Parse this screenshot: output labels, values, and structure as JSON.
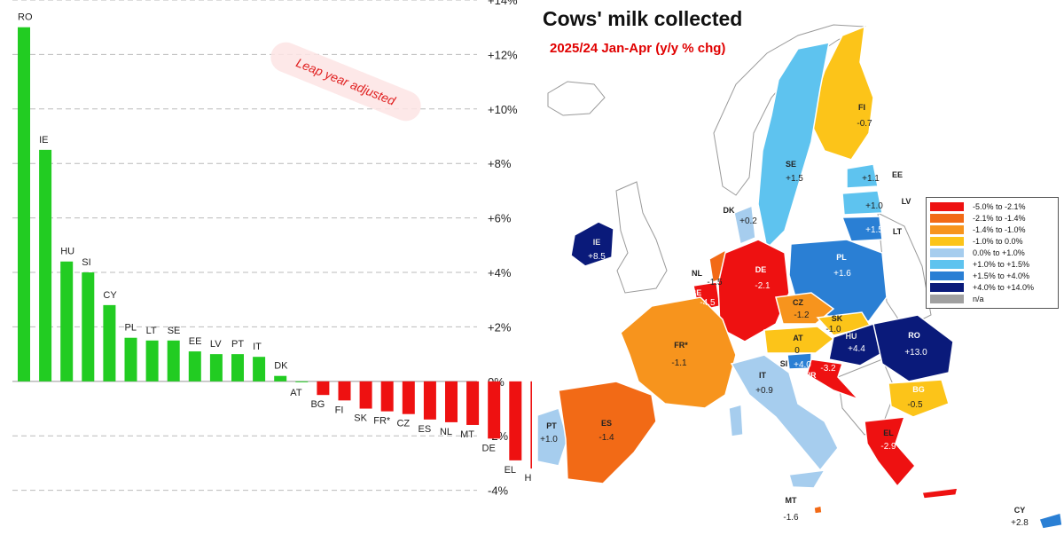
{
  "chart_data": [
    {
      "type": "bar",
      "title": "",
      "annotation": "Leap year adjusted",
      "categories": [
        "RO",
        "IE",
        "HU",
        "SI",
        "CY",
        "PL",
        "LT",
        "SE",
        "EE",
        "LV",
        "PT",
        "IT",
        "DK",
        "AT",
        "BG",
        "FI",
        "SK",
        "FR*",
        "CZ",
        "ES",
        "NL",
        "MT",
        "DE",
        "EL",
        "HR",
        "BE"
      ],
      "values": [
        13.0,
        8.5,
        4.4,
        4.0,
        2.8,
        1.6,
        1.5,
        1.5,
        1.1,
        1.0,
        1.0,
        0.9,
        0.2,
        0.0,
        -0.5,
        -0.7,
        -1.0,
        -1.1,
        -1.2,
        -1.4,
        -1.5,
        -1.6,
        -2.1,
        -2.9,
        -3.2,
        -4.5
      ],
      "positive_color": "#22cc22",
      "negative_color": "#ee1111",
      "ylim": [
        -4.5,
        14
      ],
      "y_ticks": [
        "+14%",
        "+12%",
        "+10%",
        "+8%",
        "+6%",
        "+4%",
        "+2%",
        "0%",
        "-2%",
        "-4%"
      ],
      "grid": true,
      "y_axis_side": "right"
    },
    {
      "type": "map",
      "title": "Cows' milk collected",
      "subtitle": "2025/24  Jan-Apr  (y/y % chg)",
      "legend": [
        {
          "label": "-5.0%  to  -2.1%",
          "color": "#ee1111"
        },
        {
          "label": "-2.1%  to  -1.4%",
          "color": "#f26a16"
        },
        {
          "label": "-1.4%  to  -1.0%",
          "color": "#f7941d"
        },
        {
          "label": "-1.0%  to  0.0%",
          "color": "#fcc419"
        },
        {
          "label": "0.0%  to  +1.0%",
          "color": "#a6cdee"
        },
        {
          "label": "+1.0%  to  +1.5%",
          "color": "#5ec3ef"
        },
        {
          "label": "+1.5%  to  +4.0%",
          "color": "#2a7fd4"
        },
        {
          "label": "+4.0%  to  +14.0%",
          "color": "#0a1a7a"
        },
        {
          "label": "n/a",
          "color": "#a0a0a0"
        }
      ],
      "regions": [
        {
          "code": "FI",
          "value": "-0.7"
        },
        {
          "code": "SE",
          "value": "+1.5"
        },
        {
          "code": "EE",
          "value": "+1.1"
        },
        {
          "code": "LV",
          "value": "+1.0"
        },
        {
          "code": "LT",
          "value": "+1.5"
        },
        {
          "code": "DK",
          "value": "+0.2"
        },
        {
          "code": "IE",
          "value": "+8.5"
        },
        {
          "code": "NL",
          "value": "-1.5"
        },
        {
          "code": "BE",
          "value": "-4.5"
        },
        {
          "code": "DE",
          "value": "-2.1"
        },
        {
          "code": "PL",
          "value": "+1.6"
        },
        {
          "code": "CZ",
          "value": "-1.2"
        },
        {
          "code": "SK",
          "value": "-1.0"
        },
        {
          "code": "AT",
          "value": "0"
        },
        {
          "code": "HU",
          "value": "+4.4"
        },
        {
          "code": "RO",
          "value": "+13.0"
        },
        {
          "code": "FR*",
          "value": "-1.1"
        },
        {
          "code": "SI",
          "value": "+4.0"
        },
        {
          "code": "HR",
          "value": "-3.2"
        },
        {
          "code": "IT",
          "value": "+0.9"
        },
        {
          "code": "BG",
          "value": "-0.5"
        },
        {
          "code": "PT",
          "value": "+1.0"
        },
        {
          "code": "ES",
          "value": "-1.4"
        },
        {
          "code": "EL",
          "value": "-2.9"
        },
        {
          "code": "MT",
          "value": "-1.6"
        },
        {
          "code": "CY",
          "value": "+2.8"
        }
      ]
    }
  ]
}
